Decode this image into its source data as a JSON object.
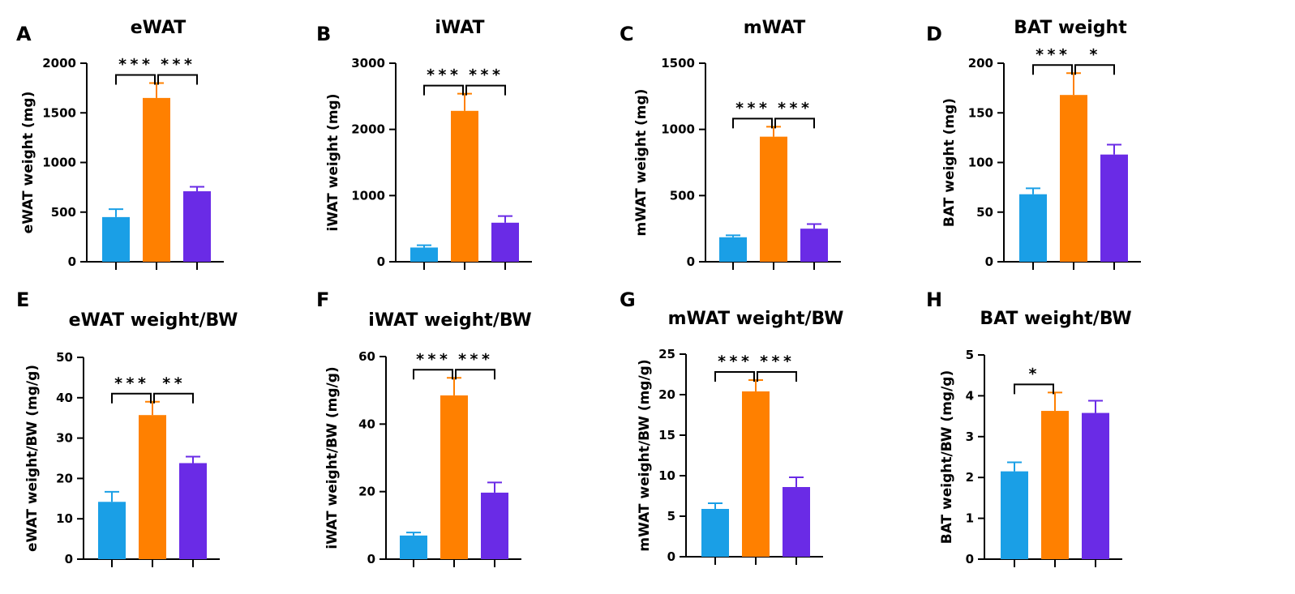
{
  "chart_data": [
    {
      "panel": "A",
      "type": "bar",
      "title": "eWAT",
      "ylabel": "eWAT weight (mg)",
      "ylim": [
        0,
        2000
      ],
      "yticks": [
        "0",
        "500",
        "1000",
        "1500",
        "2000"
      ],
      "values": [
        450,
        1650,
        710
      ],
      "errors": [
        80,
        150,
        45
      ],
      "colors": [
        "#1a9fe6",
        "#ff8000",
        "#6a2be6"
      ],
      "significance": [
        {
          "from": 0,
          "to": 1,
          "label": "***"
        },
        {
          "from": 1,
          "to": 2,
          "label": "***"
        }
      ]
    },
    {
      "panel": "B",
      "type": "bar",
      "title": "iWAT",
      "ylabel": "iWAT weight (mg)",
      "ylim": [
        0,
        3000
      ],
      "yticks": [
        "0",
        "1000",
        "2000",
        "3000"
      ],
      "values": [
        215,
        2280,
        590
      ],
      "errors": [
        35,
        260,
        100
      ],
      "colors": [
        "#1a9fe6",
        "#ff8000",
        "#6a2be6"
      ],
      "significance": [
        {
          "from": 0,
          "to": 1,
          "label": "***"
        },
        {
          "from": 1,
          "to": 2,
          "label": "***"
        }
      ]
    },
    {
      "panel": "C",
      "type": "bar",
      "title": "mWAT",
      "ylabel": "mWAT weight (mg)",
      "ylim": [
        0,
        1500
      ],
      "yticks": [
        "0",
        "500",
        "1000",
        "1500"
      ],
      "values": [
        185,
        945,
        250
      ],
      "errors": [
        15,
        75,
        35
      ],
      "colors": [
        "#1a9fe6",
        "#ff8000",
        "#6a2be6"
      ],
      "significance": [
        {
          "from": 0,
          "to": 1,
          "label": "***"
        },
        {
          "from": 1,
          "to": 2,
          "label": "***"
        }
      ]
    },
    {
      "panel": "D",
      "type": "bar",
      "title": "BAT weight",
      "ylabel": "BAT weight (mg)",
      "ylim": [
        0,
        200
      ],
      "yticks": [
        "0",
        "50",
        "100",
        "150",
        "200"
      ],
      "values": [
        68,
        168,
        108
      ],
      "errors": [
        6,
        22,
        10
      ],
      "colors": [
        "#1a9fe6",
        "#ff8000",
        "#6a2be6"
      ],
      "significance": [
        {
          "from": 0,
          "to": 1,
          "label": "***"
        },
        {
          "from": 1,
          "to": 2,
          "label": "*"
        }
      ]
    },
    {
      "panel": "E",
      "type": "bar",
      "title": "eWAT weight/BW",
      "ylabel": "eWAT weight/BW (mg/g)",
      "ylim": [
        0,
        50
      ],
      "yticks": [
        "0",
        "10",
        "20",
        "30",
        "40",
        "50"
      ],
      "values": [
        14.2,
        35.7,
        23.8
      ],
      "errors": [
        2.5,
        3.3,
        1.6
      ],
      "colors": [
        "#1a9fe6",
        "#ff8000",
        "#6a2be6"
      ],
      "significance": [
        {
          "from": 0,
          "to": 1,
          "label": "***"
        },
        {
          "from": 1,
          "to": 2,
          "label": "**"
        }
      ]
    },
    {
      "panel": "F",
      "type": "bar",
      "title": "iWAT weight/BW",
      "ylabel": "iWAT weight/BW (mg/g)",
      "ylim": [
        0,
        60
      ],
      "yticks": [
        "0",
        "20",
        "40",
        "60"
      ],
      "values": [
        7,
        48.5,
        19.7
      ],
      "errors": [
        0.9,
        5.2,
        3
      ],
      "colors": [
        "#1a9fe6",
        "#ff8000",
        "#6a2be6"
      ],
      "significance": [
        {
          "from": 0,
          "to": 1,
          "label": "***"
        },
        {
          "from": 1,
          "to": 2,
          "label": "***"
        }
      ]
    },
    {
      "panel": "G",
      "type": "bar",
      "title": "mWAT weight/BW",
      "ylabel": "mWAT weight/BW (mg/g)",
      "ylim": [
        0,
        25
      ],
      "yticks": [
        "0",
        "5",
        "10",
        "15",
        "20",
        "25"
      ],
      "values": [
        5.9,
        20.4,
        8.6
      ],
      "errors": [
        0.7,
        1.4,
        1.2
      ],
      "colors": [
        "#1a9fe6",
        "#ff8000",
        "#6a2be6"
      ],
      "significance": [
        {
          "from": 0,
          "to": 1,
          "label": "***"
        },
        {
          "from": 1,
          "to": 2,
          "label": "***"
        }
      ]
    },
    {
      "panel": "H",
      "type": "bar",
      "title": "BAT weight/BW",
      "ylabel": "BAT weight/BW (mg/g)",
      "ylim": [
        0,
        5
      ],
      "yticks": [
        "0",
        "1",
        "2",
        "3",
        "4",
        "5"
      ],
      "values": [
        2.15,
        3.63,
        3.58
      ],
      "errors": [
        0.22,
        0.45,
        0.3
      ],
      "colors": [
        "#1a9fe6",
        "#ff8000",
        "#6a2be6"
      ],
      "significance": [
        {
          "from": 0,
          "to": 1,
          "label": "*"
        }
      ]
    }
  ]
}
